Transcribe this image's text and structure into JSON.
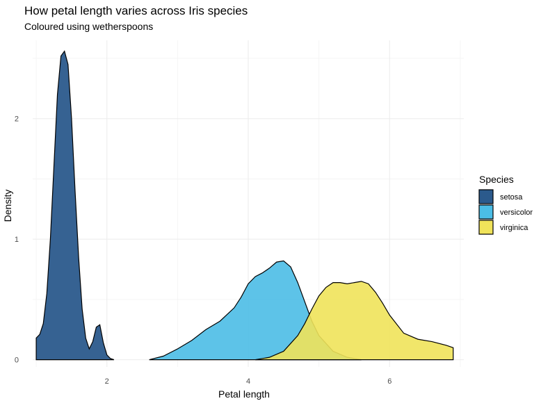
{
  "chart_data": {
    "type": "area",
    "title": "How petal length varies across Iris species",
    "subtitle": "Coloured using wetherspoons",
    "xlabel": "Petal length",
    "ylabel": "Density",
    "xlim": [
      0.95,
      7.05
    ],
    "ylim": [
      -0.06,
      2.65
    ],
    "x_ticks": [
      2,
      4,
      6
    ],
    "x_tick_labels": [
      "2",
      "4",
      "6"
    ],
    "x_minor_ticks": [
      1,
      3,
      5,
      7
    ],
    "y_ticks": [
      0,
      1,
      2
    ],
    "y_tick_labels": [
      "0",
      "1",
      "2"
    ],
    "y_minor_ticks": [
      0.5,
      1.5,
      2.5
    ],
    "grid": true,
    "legend": {
      "title": "Species",
      "placement": "right"
    },
    "series": [
      {
        "name": "setosa",
        "color": "#2b5a8c",
        "opacity": 0.95,
        "x": [
          1.0,
          1.05,
          1.1,
          1.15,
          1.2,
          1.25,
          1.3,
          1.35,
          1.4,
          1.45,
          1.5,
          1.55,
          1.6,
          1.65,
          1.7,
          1.75,
          1.8,
          1.85,
          1.9,
          1.95,
          2.0,
          2.05,
          2.1
        ],
        "y": [
          0.18,
          0.21,
          0.3,
          0.55,
          1.0,
          1.6,
          2.2,
          2.52,
          2.56,
          2.45,
          2.0,
          1.4,
          0.85,
          0.42,
          0.18,
          0.09,
          0.15,
          0.27,
          0.29,
          0.14,
          0.04,
          0.01,
          0.0
        ]
      },
      {
        "name": "versicolor",
        "color": "#4bbde6",
        "opacity": 0.9,
        "x": [
          2.6,
          2.8,
          3.0,
          3.2,
          3.4,
          3.6,
          3.8,
          3.9,
          4.0,
          4.1,
          4.2,
          4.3,
          4.4,
          4.5,
          4.6,
          4.7,
          4.8,
          4.9,
          5.0,
          5.2,
          5.4,
          5.6
        ],
        "y": [
          0.0,
          0.03,
          0.09,
          0.16,
          0.25,
          0.32,
          0.43,
          0.52,
          0.63,
          0.69,
          0.72,
          0.76,
          0.81,
          0.82,
          0.77,
          0.64,
          0.48,
          0.32,
          0.2,
          0.07,
          0.02,
          0.0
        ]
      },
      {
        "name": "virginica",
        "color": "#f0e35a",
        "opacity": 0.9,
        "x": [
          4.1,
          4.3,
          4.5,
          4.7,
          4.8,
          4.9,
          5.0,
          5.1,
          5.2,
          5.3,
          5.4,
          5.5,
          5.6,
          5.7,
          5.8,
          5.9,
          6.0,
          6.2,
          6.4,
          6.6,
          6.8,
          6.9
        ],
        "y": [
          0.0,
          0.02,
          0.07,
          0.2,
          0.3,
          0.42,
          0.53,
          0.6,
          0.64,
          0.64,
          0.63,
          0.64,
          0.65,
          0.63,
          0.56,
          0.47,
          0.37,
          0.22,
          0.17,
          0.15,
          0.12,
          0.1
        ]
      }
    ]
  }
}
